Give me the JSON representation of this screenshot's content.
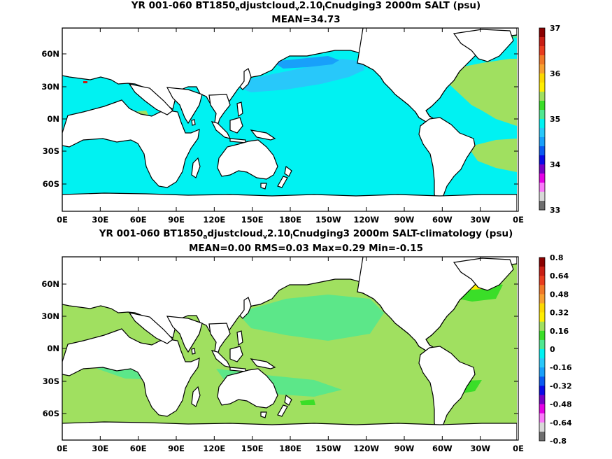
{
  "panels": [
    {
      "id": "top",
      "title_parts": [
        "YR 001-060 BT1850",
        "a",
        "djustcloud",
        "v",
        "2.10",
        "l",
        "Cnudging3 2000m SALT (psu)"
      ],
      "subtitle": "MEAN=34.73",
      "field": "absolute",
      "colorbar": {
        "labels": [
          "37",
          "36",
          "35",
          "34",
          "33"
        ],
        "colors": [
          "#8b0000",
          "#c81e14",
          "#e83c1e",
          "#f07828",
          "#f8a030",
          "#fcd800",
          "#ffee00",
          "#a0e060",
          "#3ade28",
          "#50e890",
          "#00f2f2",
          "#28c8fa",
          "#18a0fa",
          "#0a5af0",
          "#0a0ae6",
          "#7800c8",
          "#e600e6",
          "#fa78fa",
          "#d8d8d8",
          "#6e6e6e"
        ],
        "color_order": "top-to-bottom"
      }
    },
    {
      "id": "bottom",
      "title_parts": [
        "YR 001-060 BT1850",
        "a",
        "djustcloud",
        "v",
        "2.10",
        "l",
        "Cnudging3 2000m SALT-climatology (psu)"
      ],
      "subtitle": "MEAN=0.00   RMS=0.03   Max=0.29   Min=-0.15",
      "field": "anomaly",
      "colorbar": {
        "labels": [
          "0.8",
          "0.64",
          "0.48",
          "0.32",
          "0.16",
          "0",
          "-0.16",
          "-0.32",
          "-0.48",
          "-0.64",
          "-0.8"
        ],
        "colors": [
          "#8b0000",
          "#c81e14",
          "#e83c1e",
          "#f07828",
          "#f8a030",
          "#fcd800",
          "#ffee00",
          "#a0e060",
          "#3ade28",
          "#50e890",
          "#00f2f2",
          "#28c8fa",
          "#18a0fa",
          "#0a5af0",
          "#0a0ae6",
          "#7800c8",
          "#e600e6",
          "#fa78fa",
          "#d8d8d8",
          "#6e6e6e"
        ],
        "color_order": "top-to-bottom"
      }
    }
  ],
  "x_ticks": [
    "0E",
    "30E",
    "60E",
    "90E",
    "120E",
    "150E",
    "180E",
    "150W",
    "120W",
    "90W",
    "60W",
    "30W",
    "0E"
  ],
  "y_ticks": [
    "60N",
    "30N",
    "0N",
    "30S",
    "60S"
  ],
  "colors": {
    "land": "#ffffff",
    "coastline": "#000000",
    "ocean_top_main": "#00f2f2",
    "ocean_top_fresh": "#28c8fa",
    "ocean_top_freshest": "#18a0fa",
    "ocean_top_salty": "#a0e060",
    "ocean_top_saltier": "#3ade28",
    "ocean_top_salty_mediterranean": "#c81e14",
    "ocean_bottom_main": "#a0e060",
    "ocean_bottom_near_zero": "#50e890",
    "ocean_bottom_positive": "#3ade28",
    "ocean_bottom_high": "#ffee00"
  }
}
